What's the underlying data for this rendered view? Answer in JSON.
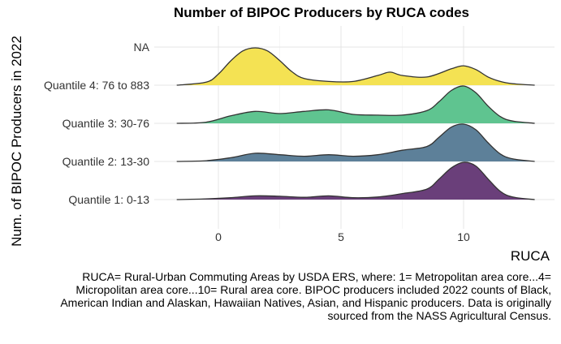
{
  "chart_data": {
    "type": "area",
    "subtype": "ridgeline",
    "title": "Number of BIPOC Producers by RUCA codes",
    "xlabel": "RUCA",
    "ylabel": "Num. of BIPOC Producers in 2022",
    "xlim": [
      -1.7,
      12.9
    ],
    "xticks": [
      0,
      5,
      10
    ],
    "grid": true,
    "legend": "none",
    "series": [
      {
        "name": "Quantile 1: 0-13",
        "color": "#6a3f7a",
        "x": [
          -1.7,
          -0.5,
          0.5,
          1.5,
          2.5,
          3.5,
          4.5,
          5.5,
          6.5,
          7.5,
          8.5,
          9.0,
          9.5,
          10.0,
          10.5,
          11.0,
          11.5,
          12.0,
          12.9
        ],
        "density": [
          0.0,
          0.02,
          0.05,
          0.1,
          0.09,
          0.06,
          0.1,
          0.05,
          0.07,
          0.16,
          0.28,
          0.55,
          0.85,
          1.0,
          0.9,
          0.55,
          0.22,
          0.07,
          0.0
        ]
      },
      {
        "name": "Quantile 2: 13-30",
        "color": "#5d8099",
        "x": [
          -1.7,
          -0.5,
          0.5,
          1.5,
          2.5,
          3.5,
          4.5,
          5.5,
          6.5,
          7.5,
          8.5,
          9.0,
          9.5,
          10.0,
          10.5,
          11.0,
          11.5,
          12.0,
          12.9
        ],
        "density": [
          0.0,
          0.02,
          0.1,
          0.22,
          0.18,
          0.14,
          0.18,
          0.14,
          0.18,
          0.3,
          0.4,
          0.65,
          0.92,
          1.0,
          0.85,
          0.5,
          0.2,
          0.07,
          0.0
        ]
      },
      {
        "name": "Quantile 3: 30-76",
        "color": "#5fc490",
        "x": [
          -1.7,
          -0.5,
          0.5,
          1.5,
          2.5,
          3.5,
          4.5,
          5.5,
          6.5,
          7.5,
          8.5,
          9.0,
          9.5,
          10.0,
          10.5,
          11.0,
          11.5,
          12.0,
          12.9
        ],
        "density": [
          0.0,
          0.03,
          0.2,
          0.32,
          0.26,
          0.32,
          0.36,
          0.24,
          0.22,
          0.22,
          0.34,
          0.58,
          0.88,
          1.0,
          0.82,
          0.46,
          0.18,
          0.06,
          0.0
        ]
      },
      {
        "name": "Quantile 4: 76 to 883",
        "color": "#f4e253",
        "x": [
          -1.7,
          -0.5,
          0.0,
          0.5,
          1.0,
          1.5,
          2.0,
          2.5,
          3.0,
          3.5,
          4.5,
          5.5,
          6.5,
          7.0,
          7.5,
          8.5,
          9.5,
          10.0,
          10.5,
          11.0,
          11.5,
          12.0,
          12.9
        ],
        "density": [
          0.0,
          0.08,
          0.3,
          0.65,
          0.92,
          1.0,
          0.92,
          0.66,
          0.36,
          0.18,
          0.1,
          0.1,
          0.26,
          0.35,
          0.26,
          0.22,
          0.44,
          0.52,
          0.42,
          0.22,
          0.1,
          0.04,
          0.0
        ]
      },
      {
        "name": "NA",
        "color": "#f4e253",
        "x": [],
        "density": []
      }
    ],
    "caption": "RUCA= Rural-Urban Commuting Areas by USDA ERS, where: 1= Metropolitan area core...4= Micropolitan area core...10= Rural area core. BIPOC producers included 2022 counts of Black, American Indian and Alaskan, Hawaiian Natives, Asian, and Hispanic producers. Data is originally sourced from the NASS Agricultural Census."
  }
}
